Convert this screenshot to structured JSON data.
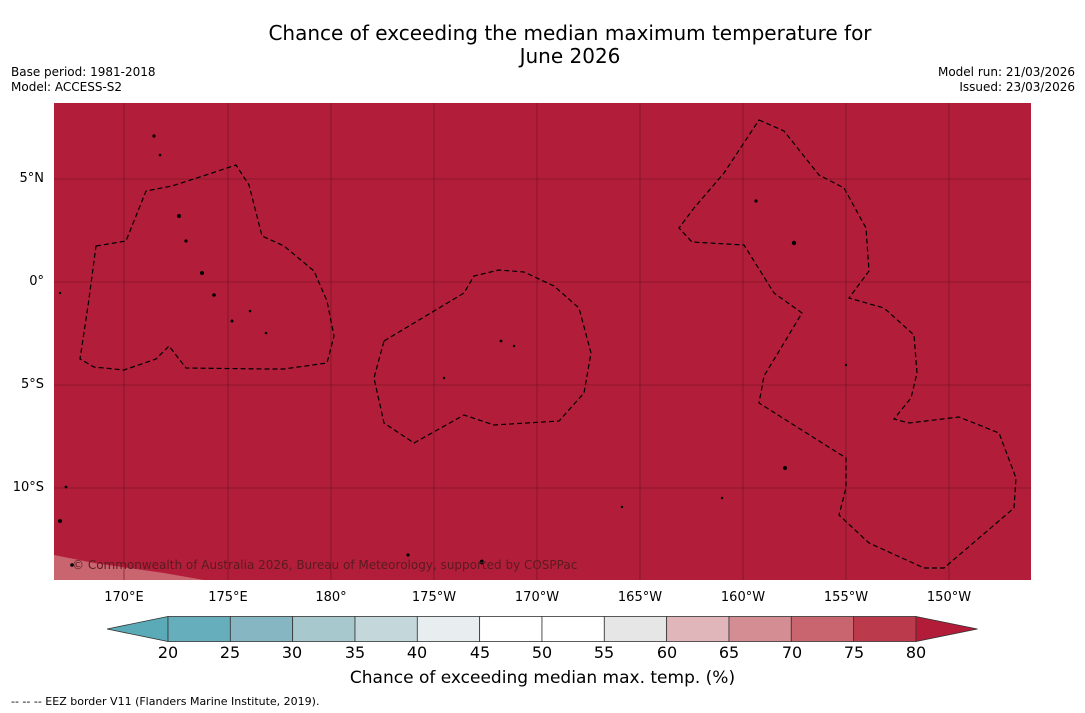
{
  "title_line1": "Chance of exceeding the median maximum temperature for",
  "title_line2": "June 2026",
  "meta_left": {
    "base_period": "Base period: 1981-2018",
    "model": "Model: ACCESS-S2"
  },
  "meta_right": {
    "model_run": "Model run: 21/03/2026",
    "issued": "Issued: 23/03/2026"
  },
  "latitude_labels": [
    "5°N",
    "0°",
    "5°S",
    "10°S"
  ],
  "longitude_labels": [
    "170°E",
    "175°E",
    "180°",
    "175°W",
    "170°W",
    "165°W",
    "160°W",
    "155°W",
    "150°W"
  ],
  "copyright": "© Commonwealth of Australia 2026, Bureau of Meteorology, supported by COSPPac",
  "colorbar": {
    "ticks": [
      "20",
      "25",
      "30",
      "35",
      "40",
      "45",
      "50",
      "55",
      "60",
      "65",
      "70",
      "75",
      "80"
    ],
    "colors": [
      "#66aebb",
      "#86b6c2",
      "#a7c8cd",
      "#c4d8dc",
      "#e8eef0",
      "#ffffff",
      "#ffffff",
      "#e6e6e6",
      "#e1b6bb",
      "#d38d93",
      "#c8656f",
      "#bb3b4d"
    ],
    "under_color": "#5aaab8",
    "over_color": "#b31c38",
    "label": "Chance of exceeding median max. temp. (%)"
  },
  "map": {
    "fill_color": "#b21e39"
  },
  "footnote": "--  --  -- EEZ border V11 (Flanders Marine Institute, 2019)."
}
